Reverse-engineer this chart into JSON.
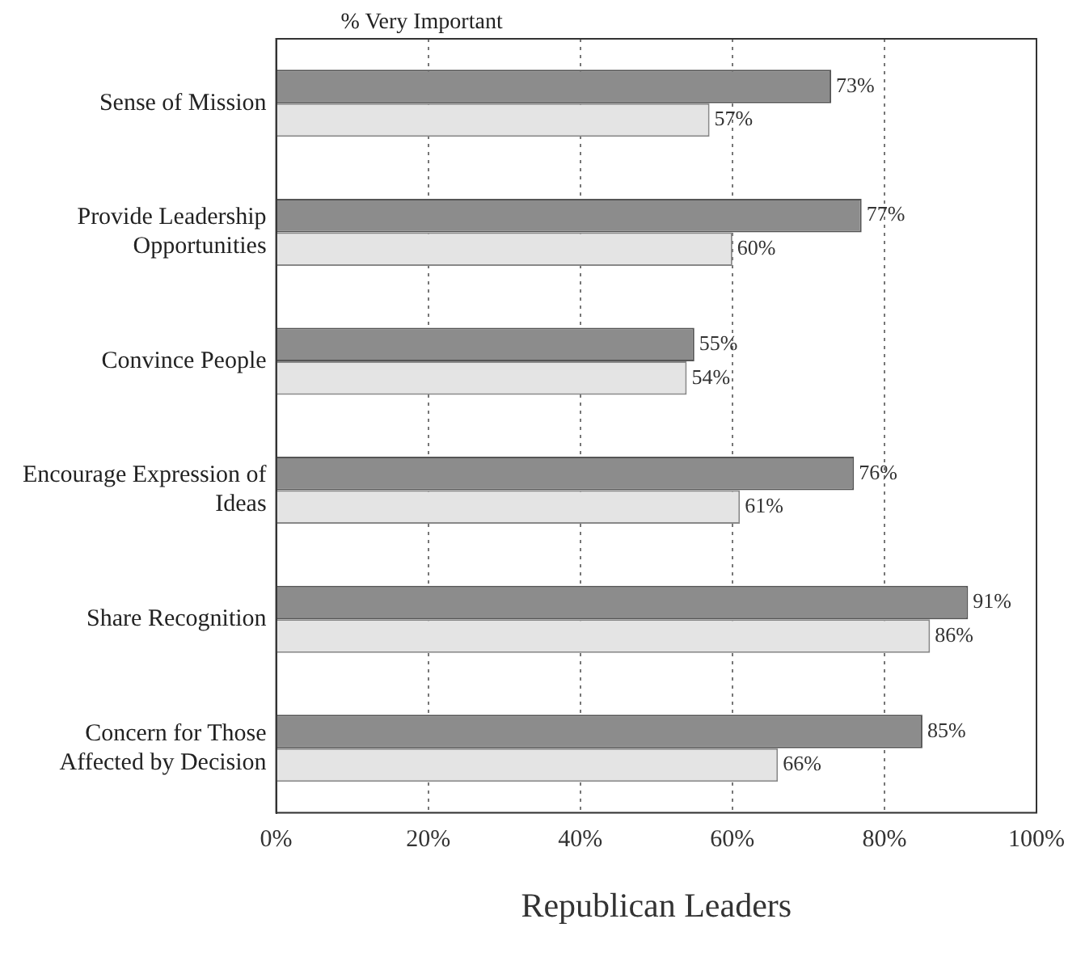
{
  "chart_data": {
    "type": "bar",
    "orientation": "horizontal",
    "title": "% Very Important",
    "xlabel": "Republican Leaders",
    "categories": [
      "Sense of Mission",
      "Provide Leadership Opportunities",
      "Convince People",
      "Encourage Expression of Ideas",
      "Share Recognition",
      "Concern for Those Affected by Decision"
    ],
    "series": [
      {
        "color": "#8c8c8c",
        "values": [
          73,
          77,
          55,
          76,
          91,
          85
        ],
        "value_labels": [
          "73%",
          "77%",
          "55%",
          "76%",
          "91%",
          "85%"
        ]
      },
      {
        "color": "#e4e4e4",
        "values": [
          57,
          60,
          54,
          61,
          86,
          66
        ],
        "value_labels": [
          "57%",
          "60%",
          "54%",
          "61%",
          "86%",
          "66%"
        ]
      }
    ],
    "xlim": [
      0,
      100
    ],
    "xticks": [
      {
        "value": 0,
        "label": "0%"
      },
      {
        "value": 20,
        "label": "20%"
      },
      {
        "value": 40,
        "label": "40%"
      },
      {
        "value": 60,
        "label": "60%"
      },
      {
        "value": 80,
        "label": "80%"
      },
      {
        "value": 100,
        "label": "100%"
      }
    ],
    "grid": "x",
    "legend": false
  }
}
